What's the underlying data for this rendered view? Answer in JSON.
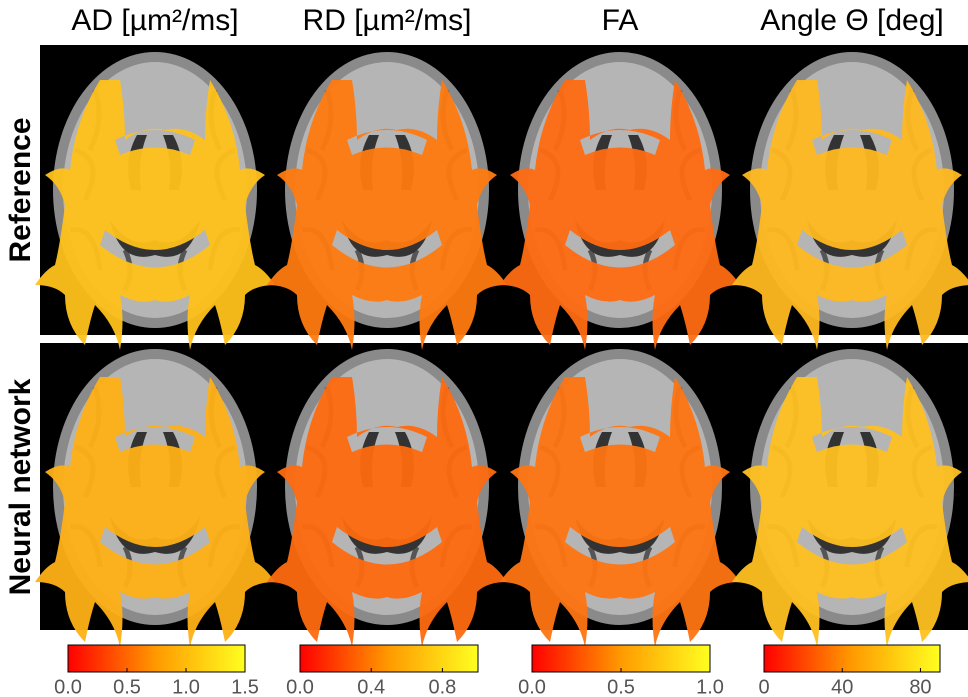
{
  "columns": [
    {
      "title": "AD [µm²/ms]",
      "colorbar": {
        "lim": [
          0,
          1.5
        ],
        "ticks": [
          {
            "value": 0,
            "label": "0.0"
          },
          0.5,
          {
            "value": 1,
            "label": "1.0"
          },
          1.5
        ]
      }
    },
    {
      "title": "RD [µm²/ms]",
      "colorbar": {
        "lim": [
          0,
          1
        ],
        "ticks": [
          {
            "value": 0,
            "label": "0.0"
          },
          0.4,
          0.8
        ]
      }
    },
    {
      "title": "FA",
      "colorbar": {
        "lim": [
          0,
          1
        ],
        "ticks": [
          {
            "value": 0,
            "label": "0.0"
          },
          0.5,
          {
            "value": 1,
            "label": "1.0"
          }
        ]
      }
    },
    {
      "title": "Angle Θ [deg]",
      "colorbar": {
        "lim": [
          0,
          90
        ],
        "ticks": [
          0,
          40,
          80
        ]
      }
    }
  ],
  "rows": [
    "Reference",
    "Neural network"
  ]
}
